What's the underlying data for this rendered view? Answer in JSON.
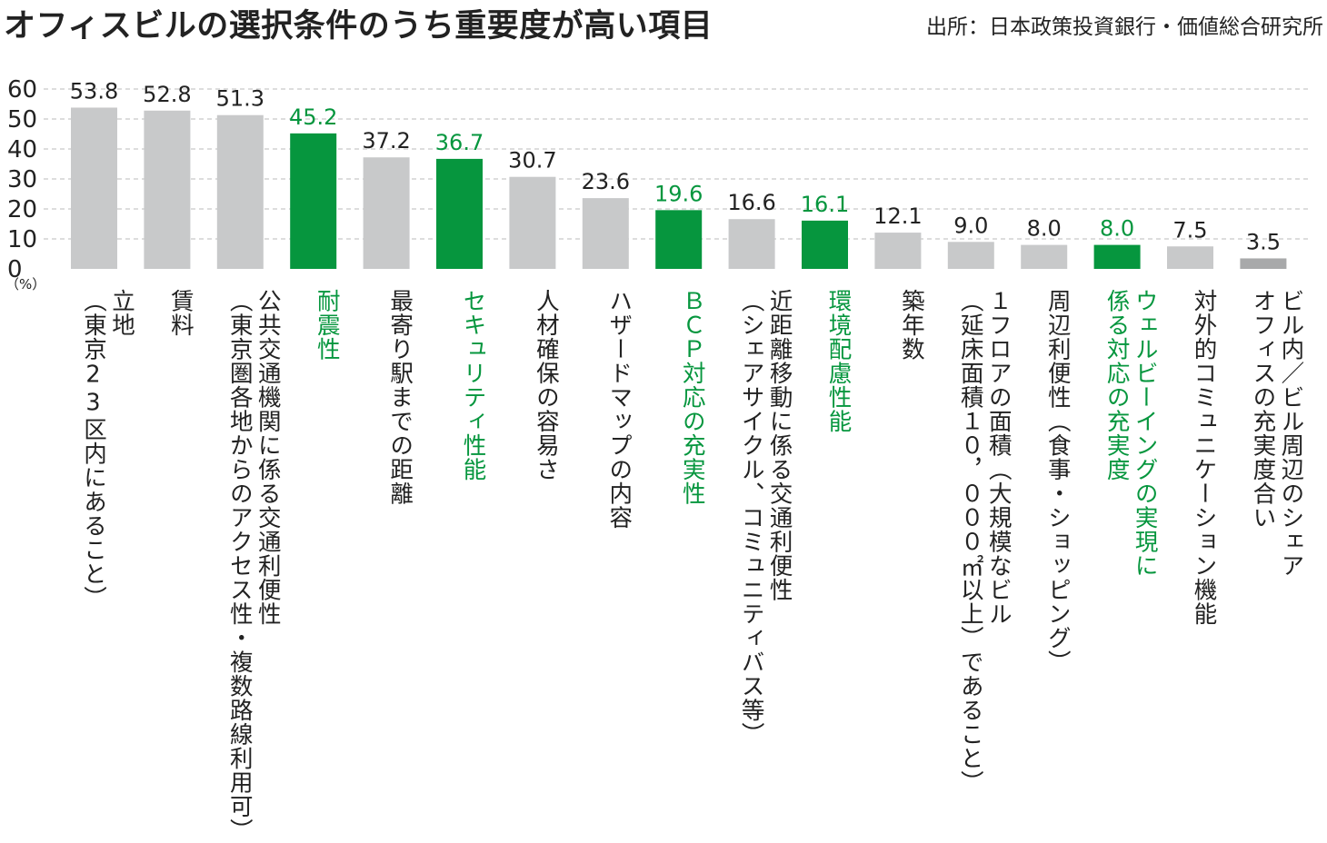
{
  "title": "オフィスビルの選択条件のうち重要度が高い項目",
  "source": "出所：日本政策投資銀行・価値総合研究所",
  "colors": {
    "highlight": "#06963E",
    "normal_bar": "#C8C9CA",
    "low_bar": "#A8A9AA",
    "text": "#222222",
    "grid": "#BBBBBB"
  },
  "chart_data": {
    "type": "bar",
    "title": "オフィスビルの選択条件のうち重要度が高い項目",
    "ylabel": "（%）",
    "ylim": [
      0,
      60
    ],
    "yticks": [
      0,
      10,
      20,
      30,
      40,
      50,
      60
    ],
    "grid": true,
    "grid_style": "dashed",
    "categories": [
      [
        "立地",
        "（東京23区内にあること）"
      ],
      [
        "賃料"
      ],
      [
        "公共交通機関に係る交通利便性",
        "（東京圏各地からのアクセス性・複数路線利用可）"
      ],
      [
        "耐震性"
      ],
      [
        "最寄り駅までの距離"
      ],
      [
        "セキュリティ性能"
      ],
      [
        "人材確保の容易さ"
      ],
      [
        "ハザードマップの内容"
      ],
      [
        "ＢＣＰ対応の充実性"
      ],
      [
        "近距離移動に係る交通利便性",
        "（シェアサイクル、コミュニティバス等）"
      ],
      [
        "環境配慮性能"
      ],
      [
        "築年数"
      ],
      [
        "１フロアの面積（大規模なビル",
        "（延床面積１０，０００㎡以上）であること）"
      ],
      [
        "周辺利便性（食事・ショッピング）"
      ],
      [
        "ウェルビーイングの実現に",
        "係る対応の充実度"
      ],
      [
        "対外的コミュニケーション機能"
      ],
      [
        "ビル内／ビル周辺のシェア",
        "オフィスの充実度合い"
      ]
    ],
    "values": [
      53.8,
      52.8,
      51.3,
      45.2,
      37.2,
      36.7,
      30.7,
      23.6,
      19.6,
      16.6,
      16.1,
      12.1,
      9.0,
      8.0,
      8.0,
      7.5,
      3.5
    ],
    "value_labels": [
      "53.8",
      "52.8",
      "51.3",
      "45.2",
      "37.2",
      "36.7",
      "30.7",
      "23.6",
      "19.6",
      "16.6",
      "16.1",
      "12.1",
      "9.0",
      "8.0",
      "8.0",
      "7.5",
      "3.5"
    ],
    "highlighted": [
      false,
      false,
      false,
      true,
      false,
      true,
      false,
      false,
      true,
      false,
      true,
      false,
      false,
      false,
      true,
      false,
      false
    ]
  }
}
